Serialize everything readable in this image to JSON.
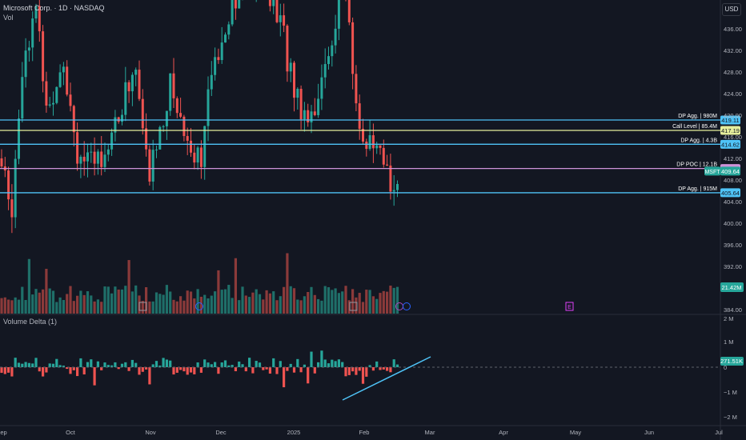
{
  "symbol": {
    "title": "Microsoft Corp. · 1D · NASDAQ",
    "vol_label": "Vol"
  },
  "currency_button": "USD",
  "price_axis": {
    "ticks": [
      "436.00",
      "432.00",
      "428.00",
      "424.00",
      "420.00",
      "416.00",
      "412.00",
      "408.00",
      "404.00",
      "400.00",
      "396.00",
      "392.00",
      "388.00",
      "384.00"
    ],
    "min": 382,
    "max": 440
  },
  "levels": [
    {
      "name": "DP Agg. | 980M",
      "price": "419.11",
      "value": 419.11,
      "color": "#4fc3f7",
      "badge_text": "#131722"
    },
    {
      "name": "Call Level | 85.4M",
      "price": "417.19",
      "value": 417.19,
      "color": "#e6ee9c",
      "badge_text": "#131722"
    },
    {
      "name": "DP Agg. | 4.3B",
      "price": "414.62",
      "value": 414.62,
      "color": "#4fc3f7",
      "badge_text": "#131722"
    },
    {
      "name": "DP POC | 12.1B",
      "price": "410.13",
      "value": 410.13,
      "color": "#ce93d8",
      "badge_text": "#131722"
    },
    {
      "name": "DP Agg. | 915M",
      "price": "405.64",
      "value": 405.64,
      "color": "#4fc3f7",
      "badge_text": "#131722"
    }
  ],
  "current": {
    "symbol": "MSFT",
    "price": "409.64",
    "value": 409.64
  },
  "volume": {
    "value_label": "21.42M"
  },
  "delta_pane": {
    "title": "Volume Delta (1)",
    "ticks": [
      "2 M",
      "1 M",
      "0",
      "−1 M",
      "−2 M"
    ],
    "current_label": "271.51K",
    "current_value": 271510
  },
  "time_axis": [
    "Sep",
    "Oct",
    "Nov",
    "Dec",
    "2025",
    "Feb",
    "Mar",
    "Apr",
    "May",
    "Jun",
    "Jul"
  ],
  "markers": [
    {
      "letter": "E",
      "label": "earnings-marker"
    }
  ],
  "colors": {
    "up": "#26a69a",
    "down": "#ef5350",
    "vol_up": "#1f6f69",
    "vol_down": "#8b3a3a",
    "trend": "#4fc3f7",
    "bg": "#131722"
  }
}
